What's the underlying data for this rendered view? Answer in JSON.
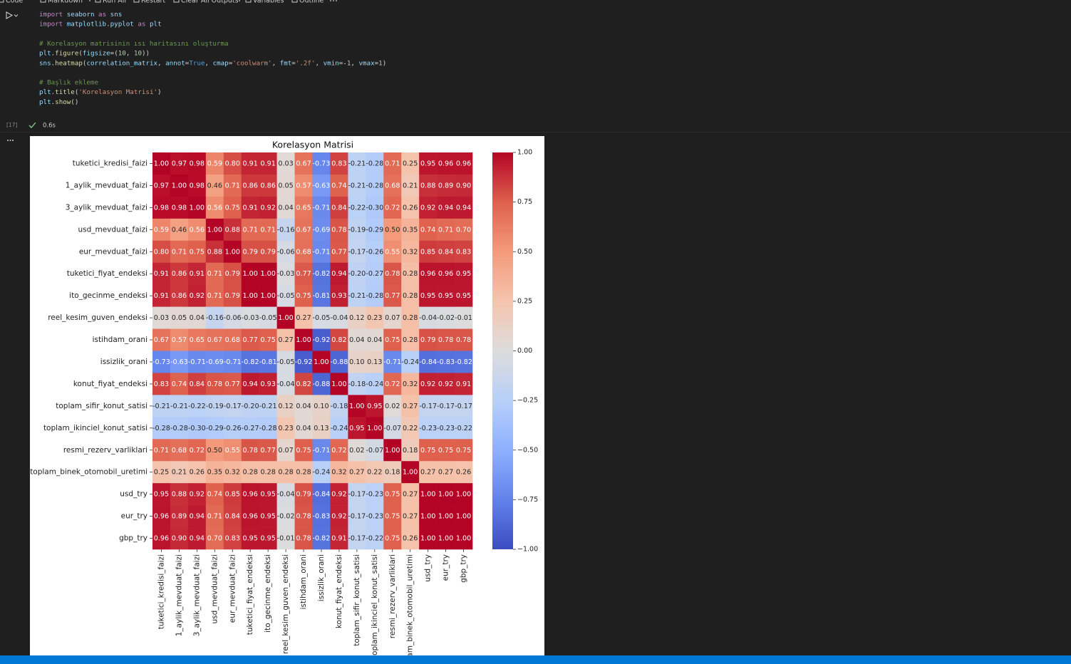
{
  "toolbar": {
    "items": [
      "Code",
      "Markdown",
      "Run All",
      "Restart",
      "Clear All Outputs",
      "Variables",
      "Outline"
    ]
  },
  "cell": {
    "execution_count": "[17]",
    "duration": "0.6s",
    "code_blocks": [
      [
        "import seaborn as sns",
        "import matplotlib.pyplot as plt"
      ],
      [
        "# Korelasyon matrisinin ısı haritasını oluşturma",
        "plt.figure(figsize=(10, 10))",
        "sns.heatmap(correlation_matrix, annot=True, cmap='coolwarm', fmt='.2f', vmin=-1, vmax=1)"
      ],
      [
        "# Başlık ekleme",
        "plt.title('Korelasyon Matrisi')",
        "plt.show()"
      ]
    ]
  },
  "chart_data": {
    "type": "heatmap",
    "title": "Korelasyon Matrisi",
    "categories": [
      "tuketici_kredisi_faizi",
      "1_aylik_mevduat_faizi",
      "3_aylik_mevduat_faizi",
      "usd_mevduat_faizi",
      "eur_mevduat_faizi",
      "tuketici_fiyat_endeksi",
      "ito_gecinme_endeksi",
      "reel_kesim_guven_endeksi",
      "istihdam_orani",
      "issizlik_orani",
      "konut_fiyat_endeksi",
      "toplam_sifir_konut_satisi",
      "toplam_ikinciel_konut_satisi",
      "resmi_rezerv_varliklari",
      "toplam_binek_otomobil_uretimi",
      "usd_try",
      "eur_try",
      "gbp_try"
    ],
    "values": [
      [
        1,
        0.97,
        0.98,
        0.59,
        0.8,
        0.91,
        0.91,
        0.03,
        0.67,
        -0.73,
        0.83,
        -0.21,
        -0.28,
        0.71,
        0.25,
        0.95,
        0.96,
        0.96
      ],
      [
        0.97,
        1,
        0.98,
        0.46,
        0.71,
        0.86,
        0.86,
        0.05,
        0.57,
        -0.63,
        0.74,
        -0.21,
        -0.28,
        0.68,
        0.21,
        0.88,
        0.89,
        0.9
      ],
      [
        0.98,
        0.98,
        1,
        0.56,
        0.75,
        0.91,
        0.92,
        0.04,
        0.65,
        -0.71,
        0.84,
        -0.22,
        -0.3,
        0.72,
        0.26,
        0.92,
        0.94,
        0.94
      ],
      [
        0.59,
        0.46,
        0.56,
        1,
        0.88,
        0.71,
        0.71,
        -0.16,
        0.67,
        -0.69,
        0.78,
        -0.19,
        -0.29,
        0.5,
        0.35,
        0.74,
        0.71,
        0.7
      ],
      [
        0.8,
        0.71,
        0.75,
        0.88,
        1,
        0.79,
        0.79,
        -0.06,
        0.68,
        -0.71,
        0.77,
        -0.17,
        -0.26,
        0.55,
        0.32,
        0.85,
        0.84,
        0.83
      ],
      [
        0.91,
        0.86,
        0.91,
        0.71,
        0.79,
        1,
        1,
        -0.03,
        0.77,
        -0.82,
        0.94,
        -0.2,
        -0.27,
        0.78,
        0.28,
        0.96,
        0.96,
        0.95
      ],
      [
        0.91,
        0.86,
        0.92,
        0.71,
        0.79,
        1,
        1,
        -0.05,
        0.75,
        -0.81,
        0.93,
        -0.21,
        -0.28,
        0.77,
        0.28,
        0.95,
        0.95,
        0.95
      ],
      [
        0.03,
        0.05,
        0.04,
        -0.16,
        -0.06,
        -0.03,
        -0.05,
        1,
        0.27,
        -0.05,
        -0.04,
        0.12,
        0.23,
        0.07,
        0.28,
        -0.04,
        -0.02,
        -0.01
      ],
      [
        0.67,
        0.57,
        0.65,
        0.67,
        0.68,
        0.77,
        0.75,
        0.27,
        1,
        -0.92,
        0.82,
        0.04,
        0.04,
        0.75,
        0.28,
        0.79,
        0.78,
        0.78
      ],
      [
        -0.73,
        -0.63,
        -0.71,
        -0.69,
        -0.71,
        -0.82,
        -0.81,
        -0.05,
        -0.92,
        1,
        -0.88,
        0.1,
        0.13,
        -0.71,
        -0.24,
        -0.84,
        -0.83,
        -0.82
      ],
      [
        0.83,
        0.74,
        0.84,
        0.78,
        0.77,
        0.94,
        0.93,
        -0.04,
        0.82,
        -0.88,
        1,
        -0.18,
        -0.24,
        0.72,
        0.32,
        0.92,
        0.92,
        0.91
      ],
      [
        -0.21,
        -0.21,
        -0.22,
        -0.19,
        -0.17,
        -0.2,
        -0.21,
        0.12,
        0.04,
        0.1,
        -0.18,
        1,
        0.95,
        0.02,
        0.27,
        -0.17,
        -0.17,
        -0.17
      ],
      [
        -0.28,
        -0.28,
        -0.3,
        -0.29,
        -0.26,
        -0.27,
        -0.28,
        0.23,
        0.04,
        0.13,
        -0.24,
        0.95,
        1,
        -0.07,
        0.22,
        -0.23,
        -0.23,
        -0.22
      ],
      [
        0.71,
        0.68,
        0.72,
        0.5,
        0.55,
        0.78,
        0.77,
        0.07,
        0.75,
        -0.71,
        0.72,
        0.02,
        -0.07,
        1,
        0.18,
        0.75,
        0.75,
        0.75
      ],
      [
        0.25,
        0.21,
        0.26,
        0.35,
        0.32,
        0.28,
        0.28,
        0.28,
        0.28,
        -0.24,
        0.32,
        0.27,
        0.22,
        0.18,
        1,
        0.27,
        0.27,
        0.26
      ],
      [
        0.95,
        0.88,
        0.92,
        0.74,
        0.85,
        0.96,
        0.95,
        -0.04,
        0.79,
        -0.84,
        0.92,
        -0.17,
        -0.23,
        0.75,
        0.27,
        1,
        1,
        1
      ],
      [
        0.96,
        0.89,
        0.94,
        0.71,
        0.84,
        0.96,
        0.95,
        -0.02,
        0.78,
        -0.83,
        0.92,
        -0.17,
        -0.23,
        0.75,
        0.27,
        1,
        1,
        1
      ],
      [
        0.96,
        0.9,
        0.94,
        0.7,
        0.83,
        0.95,
        0.95,
        -0.01,
        0.78,
        -0.82,
        0.91,
        -0.17,
        -0.22,
        0.75,
        0.26,
        1,
        1,
        1
      ]
    ],
    "value_labels": [
      [
        "1.00",
        "0.97",
        "0.98",
        "0.59",
        "0.80",
        "0.91",
        "0.91",
        "0.03",
        "0.67",
        "-0.73",
        "0.83",
        "-0.21",
        "-0.28",
        "0.71",
        "0.25",
        "0.95",
        "0.96",
        "0.96"
      ],
      [
        "0.97",
        "1.00",
        "0.98",
        "0.46",
        "0.71",
        "0.86",
        "0.86",
        "0.05",
        "0.57",
        "-0.63",
        "0.74",
        "-0.21",
        "-0.28",
        "0.68",
        "0.21",
        "0.88",
        "0.89",
        "0.90"
      ],
      [
        "0.98",
        "0.98",
        "1.00",
        "0.56",
        "0.75",
        "0.91",
        "0.92",
        "0.04",
        "0.65",
        "-0.71",
        "0.84",
        "-0.22",
        "-0.30",
        "0.72",
        "0.26",
        "0.92",
        "0.94",
        "0.94"
      ],
      [
        "0.59",
        "0.46",
        "0.56",
        "1.00",
        "0.88",
        "0.71",
        "0.71",
        "-0.16",
        "0.67",
        "-0.69",
        "0.78",
        "-0.19",
        "-0.29",
        "0.50",
        "0.35",
        "0.74",
        "0.71",
        "0.70"
      ],
      [
        "0.80",
        "0.71",
        "0.75",
        "0.88",
        "1.00",
        "0.79",
        "0.79",
        "-0.06",
        "0.68",
        "-0.71",
        "0.77",
        "-0.17",
        "-0.26",
        "0.55",
        "0.32",
        "0.85",
        "0.84",
        "0.83"
      ],
      [
        "0.91",
        "0.86",
        "0.91",
        "0.71",
        "0.79",
        "1.00",
        "1.00",
        "-0.03",
        "0.77",
        "-0.82",
        "0.94",
        "-0.20",
        "-0.27",
        "0.78",
        "0.28",
        "0.96",
        "0.96",
        "0.95"
      ],
      [
        "0.91",
        "0.86",
        "0.92",
        "0.71",
        "0.79",
        "1.00",
        "1.00",
        "-0.05",
        "0.75",
        "-0.81",
        "0.93",
        "-0.21",
        "-0.28",
        "0.77",
        "0.28",
        "0.95",
        "0.95",
        "0.95"
      ],
      [
        "0.03",
        "0.05",
        "0.04",
        "-0.16",
        "-0.06",
        "-0.03",
        "-0.05",
        "1.00",
        "0.27",
        "-0.05",
        "-0.04",
        "0.12",
        "0.23",
        "0.07",
        "0.28",
        "-0.04",
        "-0.02",
        "-0.01"
      ],
      [
        "0.67",
        "0.57",
        "0.65",
        "0.67",
        "0.68",
        "0.77",
        "0.75",
        "0.27",
        "1.00",
        "-0.92",
        "0.82",
        "0.04",
        "0.04",
        "0.75",
        "0.28",
        "0.79",
        "0.78",
        "0.78"
      ],
      [
        "-0.73",
        "-0.63",
        "-0.71",
        "-0.69",
        "-0.71",
        "-0.82",
        "-0.81",
        "-0.05",
        "-0.92",
        "1.00",
        "-0.88",
        "0.10",
        "0.13",
        "-0.71",
        "-0.24",
        "-0.84",
        "-0.83",
        "-0.82"
      ],
      [
        "0.83",
        "0.74",
        "0.84",
        "0.78",
        "0.77",
        "0.94",
        "0.93",
        "-0.04",
        "0.82",
        "-0.88",
        "1.00",
        "-0.18",
        "-0.24",
        "0.72",
        "0.32",
        "0.92",
        "0.92",
        "0.91"
      ],
      [
        "-0.21",
        "-0.21",
        "-0.22",
        "-0.19",
        "-0.17",
        "-0.20",
        "-0.21",
        "0.12",
        "0.04",
        "0.10",
        "-0.18",
        "1.00",
        "0.95",
        "0.02",
        "0.27",
        "-0.17",
        "-0.17",
        "-0.17"
      ],
      [
        "-0.28",
        "-0.28",
        "-0.30",
        "-0.29",
        "-0.26",
        "-0.27",
        "-0.28",
        "0.23",
        "0.04",
        "0.13",
        "-0.24",
        "0.95",
        "1.00",
        "-0.07",
        "0.22",
        "-0.23",
        "-0.23",
        "-0.22"
      ],
      [
        "0.71",
        "0.68",
        "0.72",
        "0.50",
        "0.55",
        "0.78",
        "0.77",
        "0.07",
        "0.75",
        "-0.71",
        "0.72",
        "0.02",
        "-0.07",
        "1.00",
        "0.18",
        "0.75",
        "0.75",
        "0.75"
      ],
      [
        "0.25",
        "0.21",
        "0.26",
        "0.35",
        "0.32",
        "0.28",
        "0.28",
        "0.28",
        "0.28",
        "-0.24",
        "0.32",
        "0.27",
        "0.22",
        "0.18",
        "1.00",
        "0.27",
        "0.27",
        "0.26"
      ],
      [
        "0.95",
        "0.88",
        "0.92",
        "0.74",
        "0.85",
        "0.96",
        "0.95",
        "-0.04",
        "0.79",
        "-0.84",
        "0.92",
        "-0.17",
        "-0.23",
        "0.75",
        "0.27",
        "1.00",
        "1.00",
        "1.00"
      ],
      [
        "0.96",
        "0.89",
        "0.94",
        "0.71",
        "0.84",
        "0.96",
        "0.95",
        "-0.02",
        "0.78",
        "-0.83",
        "0.92",
        "-0.17",
        "-0.23",
        "0.75",
        "0.27",
        "1.00",
        "1.00",
        "1.00"
      ],
      [
        "0.96",
        "0.90",
        "0.94",
        "0.70",
        "0.83",
        "0.95",
        "0.95",
        "-0.01",
        "0.78",
        "-0.82",
        "0.91",
        "-0.17",
        "-0.22",
        "0.75",
        "0.26",
        "1.00",
        "1.00",
        "1.00"
      ]
    ],
    "clim": [
      -1,
      1
    ],
    "cticks": [
      {
        "value": -1,
        "label": "−1.00"
      },
      {
        "value": -0.75,
        "label": "−0.75"
      },
      {
        "value": -0.5,
        "label": "−0.50"
      },
      {
        "value": -0.25,
        "label": "−0.25"
      },
      {
        "value": 0,
        "label": "0.00"
      },
      {
        "value": 0.25,
        "label": "0.25"
      },
      {
        "value": 0.5,
        "label": "0.50"
      },
      {
        "value": 0.75,
        "label": "0.75"
      },
      {
        "value": 1,
        "label": "1.00"
      }
    ],
    "colormap": [
      "#3b4cc0",
      "#6282ea",
      "#8db0fe",
      "#b8d0f9",
      "#dddcdc",
      "#f5c4ad",
      "#f49a7b",
      "#de604d",
      "#b40426"
    ]
  }
}
